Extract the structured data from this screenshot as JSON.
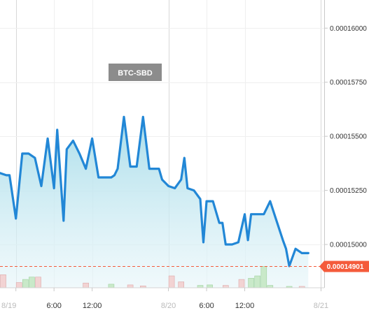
{
  "chart_data": {
    "type": "area",
    "title": "BTC-SBD",
    "x_ticks": [
      "8/19",
      "6:00",
      "12:00",
      "8/20",
      "6:00",
      "12:00",
      "8/21"
    ],
    "y_ticks": [
      "0.00015000",
      "0.00015250",
      "0.00015500",
      "0.00015750",
      "0.00016000"
    ],
    "y_tick_values": [
      0.00015,
      0.0001525,
      0.000155,
      0.0001575,
      0.00016
    ],
    "ylim": [
      0.000148,
      0.0001613
    ],
    "x_range_hours": [
      -2.5,
      48.5
    ],
    "last_price_label": "0.00014901",
    "last_price": 0.00014901,
    "grid": true,
    "colors": {
      "line": "#2287d6",
      "fill_top": "#a6dce9",
      "fill_bottom": "#e6f5f9",
      "badge": "#f45b3b",
      "pair_label_bg": "#8c8c8c",
      "volume_buy": "#c9e9c9",
      "volume_sell": "#f2d3d3"
    },
    "series": [
      {
        "x": [
          -2.5,
          -1.5,
          -1,
          0,
          1,
          2,
          3,
          4,
          5,
          6,
          6.5,
          7.5,
          8,
          9,
          10,
          11,
          12,
          13,
          14,
          15,
          15.5,
          16,
          17,
          18,
          19,
          20,
          21,
          22,
          22.5,
          23,
          24,
          25,
          26,
          26.5,
          27,
          28,
          29,
          29.5,
          30,
          31,
          32,
          32.5,
          33,
          34,
          35,
          36,
          36.5,
          37,
          38,
          39,
          40,
          41,
          42,
          42.5,
          43,
          44,
          45,
          46
        ],
        "values": [
          0.0001533,
          0.0001532,
          0.0001532,
          0.0001512,
          0.0001542,
          0.0001542,
          0.000154,
          0.0001527,
          0.0001549,
          0.0001526,
          0.0001553,
          0.0001511,
          0.0001544,
          0.0001548,
          0.0001542,
          0.0001535,
          0.0001549,
          0.0001531,
          0.0001531,
          0.0001531,
          0.0001532,
          0.0001535,
          0.0001559,
          0.0001536,
          0.0001536,
          0.0001559,
          0.0001535,
          0.0001535,
          0.0001535,
          0.000153,
          0.0001527,
          0.0001526,
          0.000153,
          0.000154,
          0.0001526,
          0.0001525,
          0.0001521,
          0.0001501,
          0.000152,
          0.000152,
          0.000151,
          0.000151,
          0.00015,
          0.00015,
          0.0001501,
          0.0001514,
          0.0001502,
          0.0001514,
          0.0001514,
          0.0001514,
          0.000152,
          0.0001511,
          0.0001502,
          0.0001498,
          0.000149,
          0.0001498,
          0.0001496,
          0.0001496
        ]
      }
    ],
    "volume_bars": [
      {
        "x": -2,
        "v": 0.55,
        "side": "sell"
      },
      {
        "x": 0.5,
        "v": 0.22,
        "side": "sell"
      },
      {
        "x": 1.5,
        "v": 0.35,
        "side": "buy"
      },
      {
        "x": 2.5,
        "v": 0.45,
        "side": "buy"
      },
      {
        "x": 3.5,
        "v": 0.45,
        "side": "sell"
      },
      {
        "x": 11,
        "v": 0.2,
        "side": "sell"
      },
      {
        "x": 15,
        "v": 0.15,
        "side": "buy"
      },
      {
        "x": 18,
        "v": 0.12,
        "side": "sell"
      },
      {
        "x": 20,
        "v": 0.08,
        "side": "sell"
      },
      {
        "x": 24.5,
        "v": 0.5,
        "side": "sell"
      },
      {
        "x": 26,
        "v": 0.25,
        "side": "sell"
      },
      {
        "x": 29,
        "v": 0.1,
        "side": "buy"
      },
      {
        "x": 30.5,
        "v": 0.12,
        "side": "buy"
      },
      {
        "x": 33,
        "v": 0.1,
        "side": "sell"
      },
      {
        "x": 35.5,
        "v": 0.35,
        "side": "sell"
      },
      {
        "x": 37,
        "v": 0.4,
        "side": "buy"
      },
      {
        "x": 38,
        "v": 0.5,
        "side": "buy"
      },
      {
        "x": 39,
        "v": 0.9,
        "side": "buy"
      },
      {
        "x": 40,
        "v": 0.1,
        "side": "buy"
      },
      {
        "x": 43,
        "v": 0.06,
        "side": "buy"
      },
      {
        "x": 45,
        "v": 0.06,
        "side": "sell"
      }
    ]
  }
}
